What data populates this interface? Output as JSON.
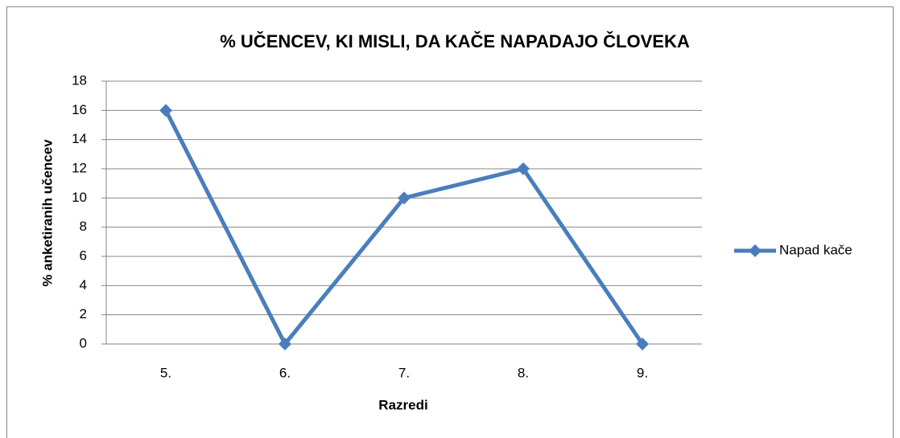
{
  "chart_data": {
    "type": "line",
    "title": "% UČENCEV, KI MISLI, DA KAČE NAPADAJO ČLOVEKA",
    "x_label": "Razredi",
    "y_label": "% anketiranih učencev",
    "categories": [
      "5.",
      "6.",
      "7.",
      "8.",
      "9."
    ],
    "series": [
      {
        "name": "Napad kače",
        "color": "#4a7ebb",
        "values": [
          16,
          0,
          10,
          12,
          0
        ]
      }
    ],
    "ylim": [
      0,
      18
    ],
    "yticks": [
      0,
      2,
      4,
      6,
      8,
      10,
      12,
      14,
      16,
      18
    ],
    "grid": true,
    "legend": "right"
  }
}
